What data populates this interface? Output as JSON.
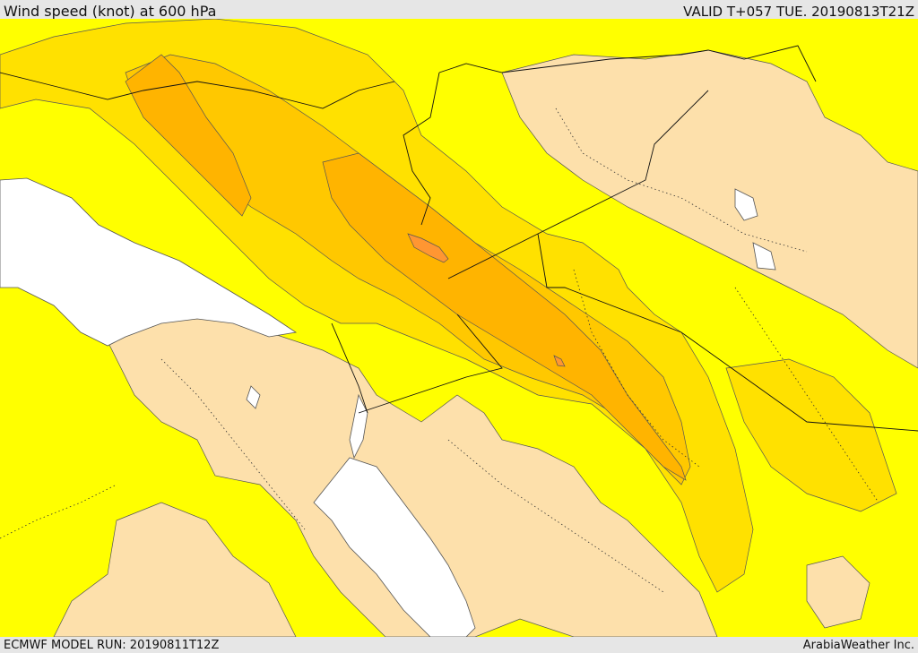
{
  "header": {
    "title": "Wind speed (knot) at 600 hPa",
    "valid_time": "VALID T+057 TUE. 20190813T21Z"
  },
  "footer": {
    "model_run": "ECMWF MODEL RUN: 20190811T12Z",
    "credit": "ArabiaWeather Inc."
  },
  "map": {
    "colors": {
      "land_low": "#fde0ab",
      "band_yellow": "#ffff00",
      "band_gold": "#ffe100",
      "band_amber": "#ffc800",
      "band_orange": "#ffb400",
      "band_core": "#ff9632",
      "water": "#ffffff"
    }
  }
}
